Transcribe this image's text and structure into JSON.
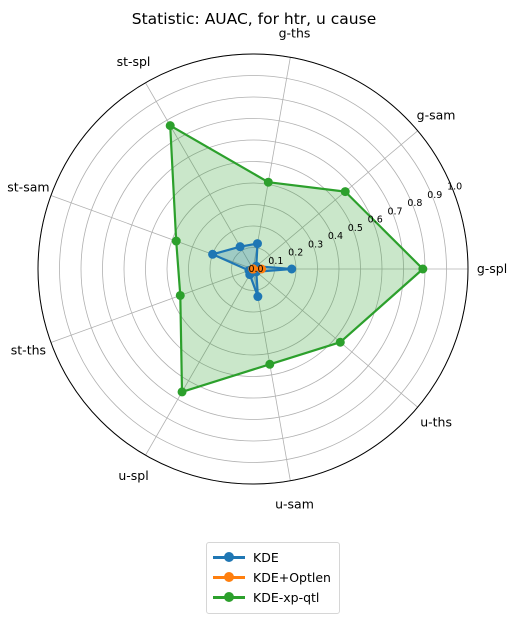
{
  "chart_data": {
    "type": "radar",
    "title": "Statistic: AUAC, for htr, u cause",
    "categories": [
      "g-spl",
      "g-sam",
      "g-ths",
      "st-spl",
      "st-sam",
      "st-ths",
      "u-spl",
      "u-sam",
      "u-ths"
    ],
    "radial_ticks": [
      "0.0",
      "0.1",
      "0.2",
      "0.3",
      "0.4",
      "0.5",
      "0.6",
      "0.7",
      "0.8",
      "0.9",
      "1.0"
    ],
    "rlim": [
      0,
      1.0
    ],
    "grid": true,
    "legend_position": "bottom-center",
    "series": [
      {
        "name": "KDE",
        "color": "#1f77b4",
        "values": [
          0.18,
          0.02,
          0.12,
          0.12,
          0.2,
          0.02,
          0.03,
          0.13,
          0.02
        ]
      },
      {
        "name": "KDE+Optlen",
        "color": "#ff7f0e",
        "values": [
          0.04,
          0.0,
          0.0,
          0.0,
          0.0,
          0.0,
          0.0,
          0.0,
          0.0
        ]
      },
      {
        "name": "KDE-xp-qtl",
        "color": "#2ca02c",
        "values": [
          0.79,
          0.56,
          0.41,
          0.77,
          0.38,
          0.36,
          0.66,
          0.45,
          0.53
        ]
      }
    ]
  }
}
